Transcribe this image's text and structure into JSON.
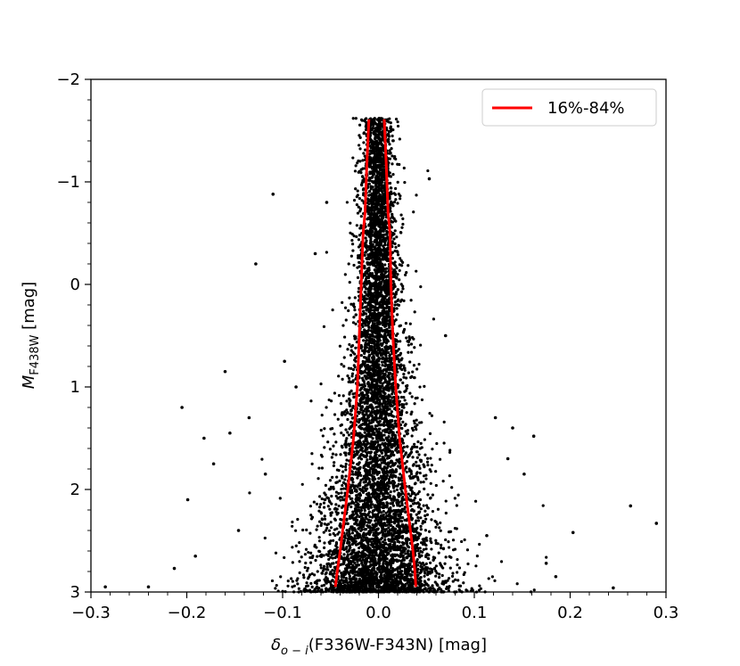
{
  "chart_data": {
    "type": "scatter",
    "xlabel_delta": "δ",
    "xlabel_sub": "o − i",
    "xlabel_rest": "(F336W-F343N) [mag]",
    "ylabel_m": "M",
    "ylabel_sub": "F438W",
    "ylabel_rest": " [mag]",
    "xlim": [
      -0.3,
      0.3
    ],
    "ylim": [
      3,
      -2
    ],
    "y_inverted": true,
    "x_ticks": [
      -0.3,
      -0.2,
      -0.1,
      0.0,
      0.1,
      0.2,
      0.3
    ],
    "x_tick_labels": [
      "−0.3",
      "−0.2",
      "−0.1",
      "0.0",
      "0.1",
      "0.2",
      "0.3"
    ],
    "y_ticks": [
      -2,
      -1,
      0,
      1,
      2,
      3
    ],
    "y_tick_labels": [
      "−2",
      "−1",
      "0",
      "1",
      "2",
      "3"
    ],
    "legend": {
      "placement": "top-right",
      "entries": [
        {
          "label": "16%-84%",
          "color": "#ff0000"
        }
      ]
    },
    "point_color": "#000000",
    "series": [
      {
        "name": "16%-84%",
        "color": "#ff0000",
        "lines": [
          {
            "x": [
              -0.01,
              -0.012,
              -0.014,
              -0.016,
              -0.018,
              -0.02,
              -0.022,
              -0.026,
              -0.032,
              -0.036,
              -0.04,
              -0.043,
              -0.045
            ],
            "y": [
              -1.61,
              -1.2,
              -0.7,
              -0.5,
              0.0,
              0.5,
              1.0,
              1.5,
              2.0,
              2.3,
              2.6,
              2.8,
              2.95
            ]
          },
          {
            "x": [
              0.006,
              0.008,
              0.01,
              0.012,
              0.013,
              0.015,
              0.018,
              0.022,
              0.028,
              0.032,
              0.036,
              0.038,
              0.039
            ],
            "y": [
              -1.61,
              -1.2,
              -0.7,
              -0.5,
              0.0,
              0.5,
              1.0,
              1.5,
              2.0,
              2.3,
              2.6,
              2.8,
              2.95
            ]
          }
        ]
      }
    ],
    "outliers": [
      {
        "x": -0.285,
        "y": 2.95
      },
      {
        "x": -0.24,
        "y": 2.95
      },
      {
        "x": -0.213,
        "y": 2.77
      },
      {
        "x": -0.205,
        "y": 1.2
      },
      {
        "x": -0.199,
        "y": 2.1
      },
      {
        "x": -0.191,
        "y": 2.65
      },
      {
        "x": -0.182,
        "y": 1.5
      },
      {
        "x": -0.172,
        "y": 1.75
      },
      {
        "x": -0.16,
        "y": 0.85
      },
      {
        "x": -0.155,
        "y": 1.45
      },
      {
        "x": -0.146,
        "y": 2.4
      },
      {
        "x": -0.135,
        "y": 1.3
      },
      {
        "x": -0.128,
        "y": -0.2
      },
      {
        "x": -0.11,
        "y": -0.88
      },
      {
        "x": -0.118,
        "y": 1.85
      },
      {
        "x": -0.098,
        "y": 0.75
      },
      {
        "x": -0.086,
        "y": 1.0
      },
      {
        "x": -0.066,
        "y": -0.3
      },
      {
        "x": -0.054,
        "y": -0.8
      },
      {
        "x": 0.053,
        "y": -1.03
      },
      {
        "x": 0.07,
        "y": 0.5
      },
      {
        "x": 0.113,
        "y": 2.45
      },
      {
        "x": 0.122,
        "y": 1.3
      },
      {
        "x": 0.135,
        "y": 1.7
      },
      {
        "x": 0.14,
        "y": 1.4
      },
      {
        "x": 0.152,
        "y": 1.85
      },
      {
        "x": 0.162,
        "y": 1.48
      },
      {
        "x": 0.175,
        "y": 2.72
      },
      {
        "x": 0.185,
        "y": 2.85
      },
      {
        "x": 0.203,
        "y": 2.42
      },
      {
        "x": 0.245,
        "y": 2.96
      },
      {
        "x": 0.263,
        "y": 2.16
      },
      {
        "x": 0.29,
        "y": 2.33
      }
    ]
  }
}
